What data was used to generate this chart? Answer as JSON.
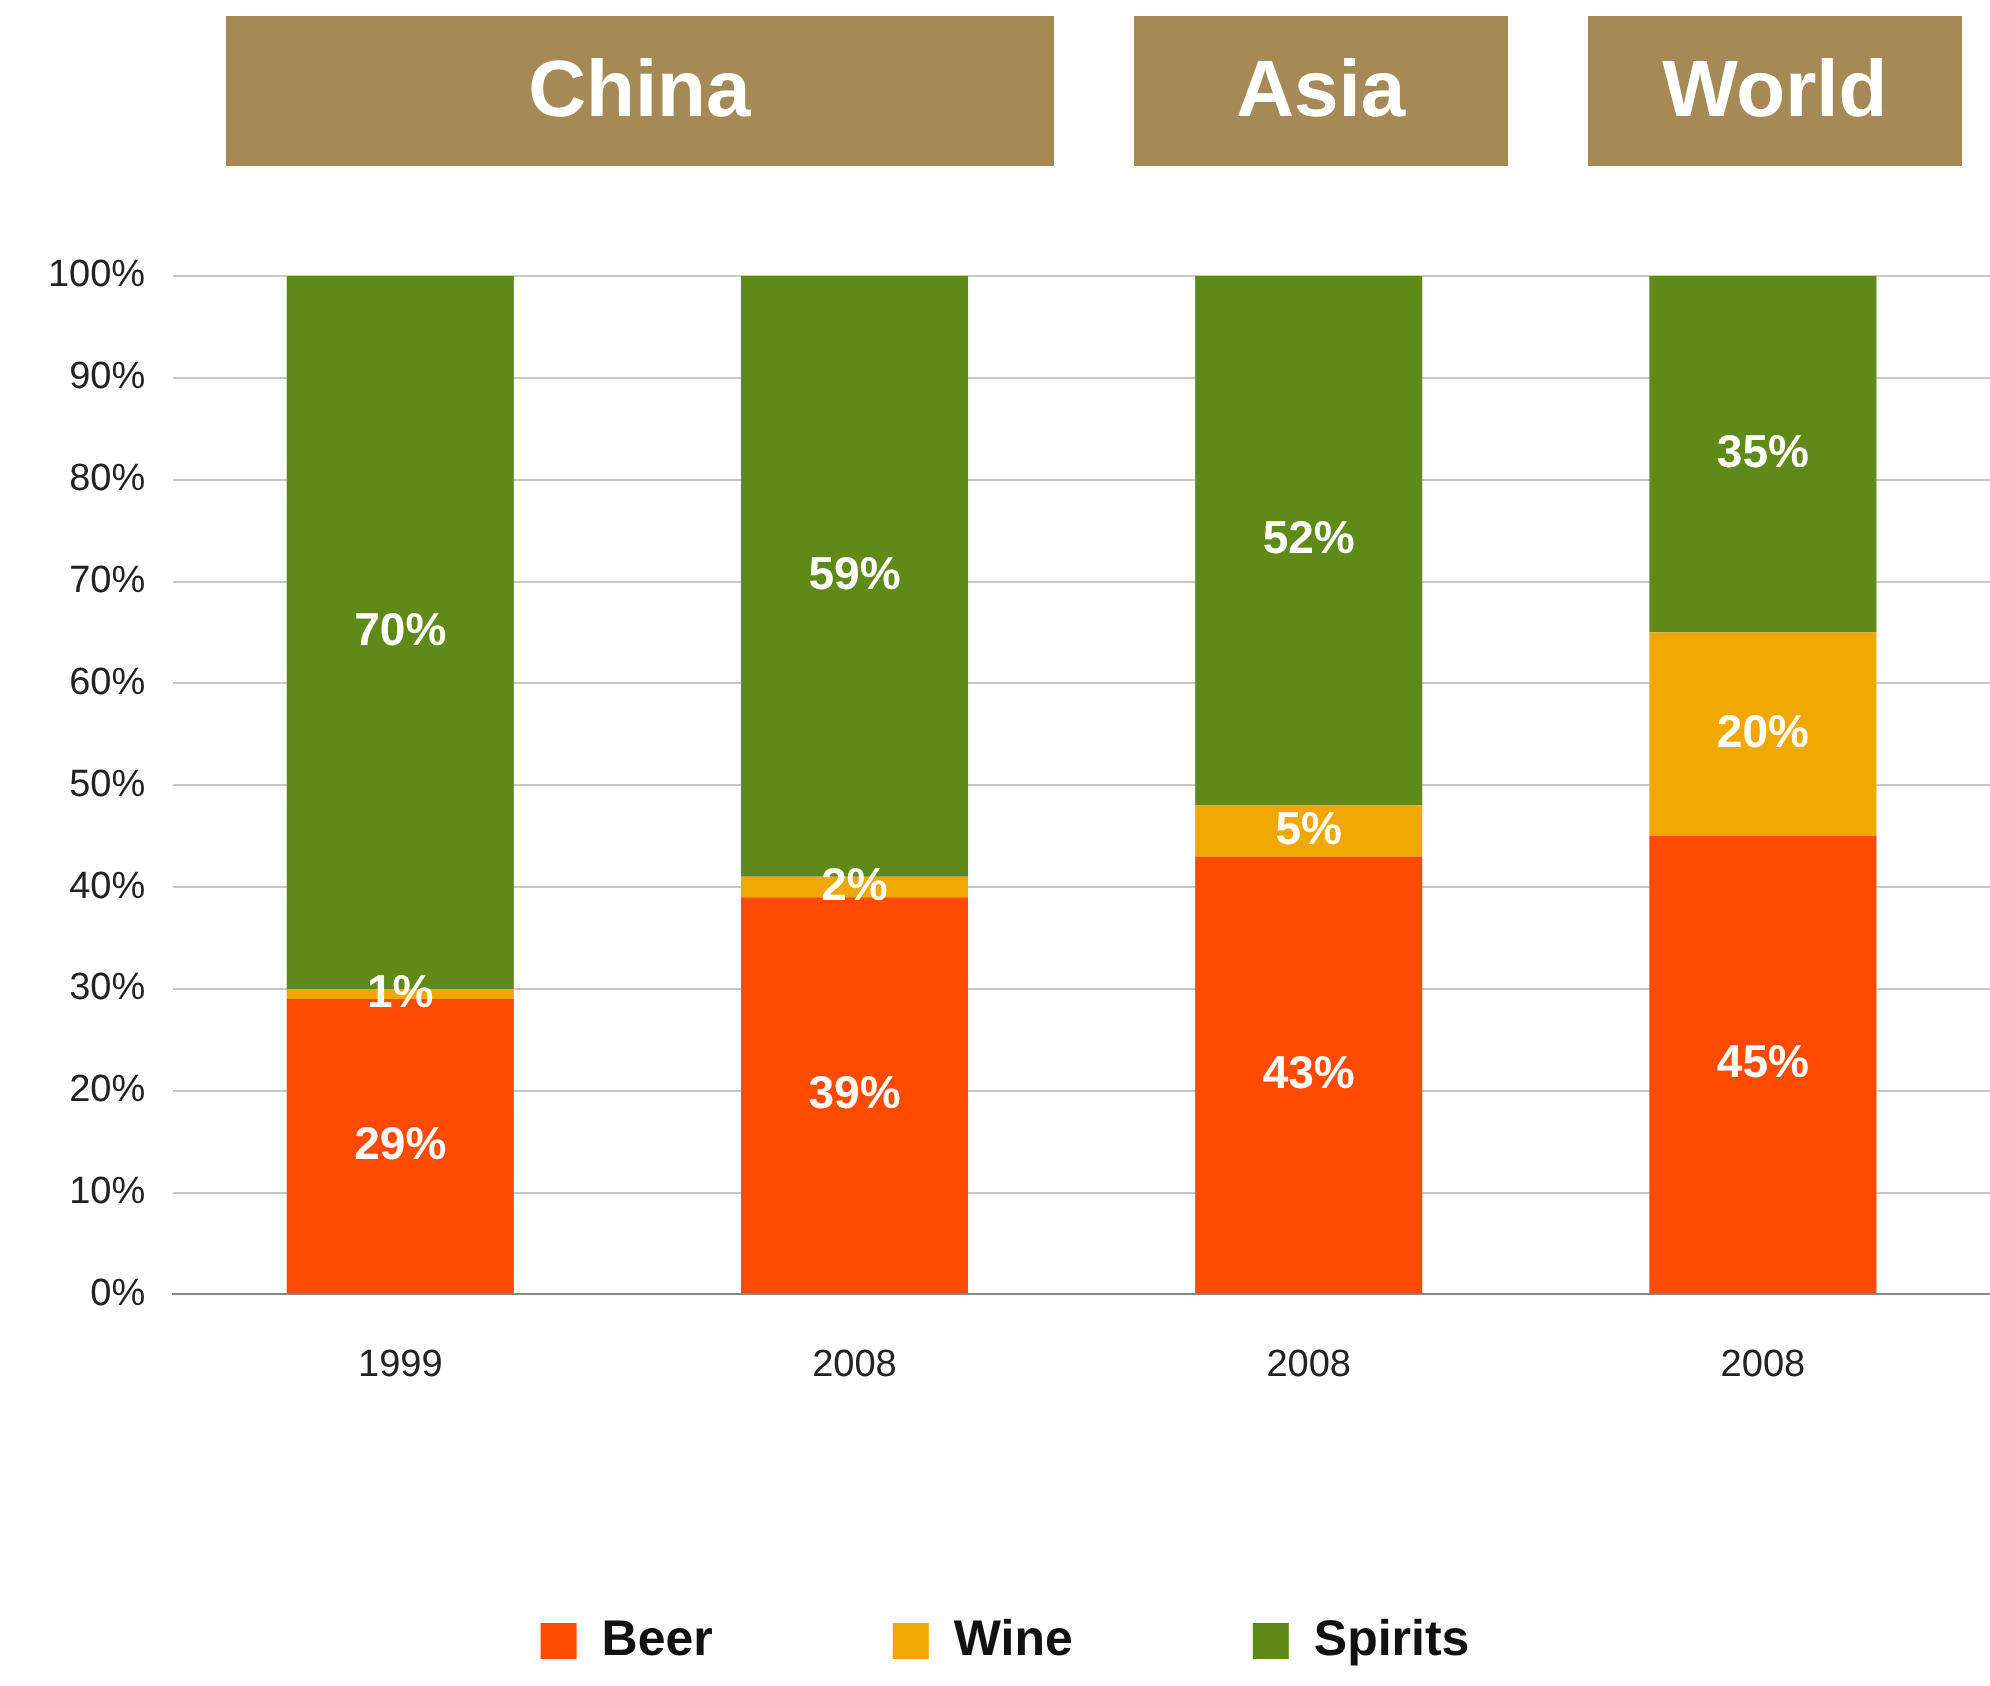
{
  "chart_data": {
    "type": "bar",
    "stacked": true,
    "categories": [
      "1999",
      "2008",
      "2008",
      "2008"
    ],
    "series": [
      {
        "name": "Beer",
        "color": "#ff4a00",
        "values": [
          29,
          39,
          43,
          45
        ],
        "value_labels": [
          "29%",
          "39%",
          "43%",
          "45%"
        ]
      },
      {
        "name": "Wine",
        "color": "#f0a800",
        "values": [
          1,
          2,
          5,
          20
        ],
        "value_labels": [
          "1%",
          "2%",
          "5%",
          "20%"
        ]
      },
      {
        "name": "Spirits",
        "color": "#5f8a18",
        "values": [
          70,
          59,
          52,
          35
        ],
        "value_labels": [
          "70%",
          "59%",
          "52%",
          "35%"
        ]
      }
    ],
    "ylim": [
      0,
      100
    ],
    "yticks": [
      {
        "value": 0,
        "label": "0%"
      },
      {
        "value": 10,
        "label": "10%"
      },
      {
        "value": 20,
        "label": "20%"
      },
      {
        "value": 30,
        "label": "30%"
      },
      {
        "value": 40,
        "label": "40%"
      },
      {
        "value": 50,
        "label": "50%"
      },
      {
        "value": 60,
        "label": "60%"
      },
      {
        "value": 70,
        "label": "70%"
      },
      {
        "value": 80,
        "label": "80%"
      },
      {
        "value": 90,
        "label": "90%"
      },
      {
        "value": 100,
        "label": "100%"
      }
    ],
    "grid": "y",
    "legend": "bottom",
    "annotations": [
      "China",
      "Asia",
      "World"
    ]
  }
}
